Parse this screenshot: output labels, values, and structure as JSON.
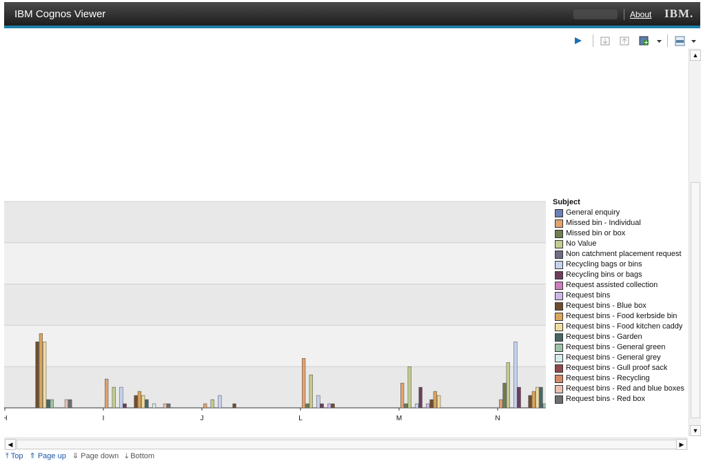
{
  "app": {
    "title": "IBM Cognos Viewer",
    "about_label": "About",
    "brand": "IBM."
  },
  "toolbar": {
    "buttons": [
      {
        "name": "run-report-button",
        "icon": "play-icon"
      },
      {
        "name": "drill-down-button",
        "icon": "drill-down-icon"
      },
      {
        "name": "drill-up-button",
        "icon": "drill-up-icon"
      },
      {
        "name": "add-to-bookmarks-button",
        "icon": "add-icon"
      },
      {
        "name": "output-format-button",
        "icon": "html-icon"
      }
    ]
  },
  "legend": {
    "title": "Subject",
    "items": [
      {
        "label": "General enquiry",
        "color": "#6b7fb8"
      },
      {
        "label": "Missed bin - Individual",
        "color": "#e0a36f"
      },
      {
        "label": "Missed bin or box",
        "color": "#6e7d52"
      },
      {
        "label": "No Value",
        "color": "#c4cc8f"
      },
      {
        "label": "Non catchment placement request",
        "color": "#6e6e86"
      },
      {
        "label": "Recycling bags or bins",
        "color": "#c6d2ee"
      },
      {
        "label": "Recycling bins or bags",
        "color": "#6e3f5c"
      },
      {
        "label": "Request assisted collection",
        "color": "#cc7fbd"
      },
      {
        "label": "Request bins",
        "color": "#cdb8e8"
      },
      {
        "label": "Request bins - Blue box",
        "color": "#6e4e2f"
      },
      {
        "label": "Request bins - Food kerbside bin",
        "color": "#d9a55e"
      },
      {
        "label": "Request bins - Food kitchen caddy",
        "color": "#f0dc9f"
      },
      {
        "label": "Request bins - Garden",
        "color": "#486666"
      },
      {
        "label": "Request bins - General green",
        "color": "#9ec2a6"
      },
      {
        "label": "Request bins - General grey",
        "color": "#d5ecec"
      },
      {
        "label": "Request bins - Gull proof sack",
        "color": "#8e4a4a"
      },
      {
        "label": "Request bins - Recycling",
        "color": "#d48a68"
      },
      {
        "label": "Request bins - Red and blue boxes",
        "color": "#e8c0b0"
      },
      {
        "label": "Request bins - Red box",
        "color": "#6e6e6e"
      }
    ]
  },
  "chart_data": {
    "type": "bar",
    "categories": [
      "H",
      "I",
      "J",
      "L",
      "M",
      "N"
    ],
    "series": [
      {
        "name": "General enquiry",
        "values": [
          0,
          0,
          0,
          0,
          0,
          0
        ]
      },
      {
        "name": "Missed bin - Individual",
        "values": [
          0,
          7,
          1,
          12,
          6,
          2
        ]
      },
      {
        "name": "Missed bin or box",
        "values": [
          0,
          0,
          0,
          1,
          1,
          6
        ]
      },
      {
        "name": "No Value",
        "values": [
          0,
          5,
          2,
          8,
          10,
          11
        ]
      },
      {
        "name": "Non catchment placement request",
        "values": [
          0,
          0,
          0,
          0,
          0,
          0
        ]
      },
      {
        "name": "Recycling bags or bins",
        "values": [
          0,
          5,
          3,
          3,
          1,
          16
        ]
      },
      {
        "name": "Recycling bins or bags",
        "values": [
          0,
          1,
          0,
          1,
          5,
          5
        ]
      },
      {
        "name": "Request assisted collection",
        "values": [
          0,
          0,
          0,
          0,
          0,
          0
        ]
      },
      {
        "name": "Request bins",
        "values": [
          0,
          0,
          0,
          1,
          1,
          0
        ]
      },
      {
        "name": "Request bins - Blue box",
        "values": [
          16,
          3,
          1,
          1,
          2,
          3
        ]
      },
      {
        "name": "Request bins - Food kerbside bin",
        "values": [
          18,
          4,
          0,
          0,
          4,
          4
        ]
      },
      {
        "name": "Request bins - Food kitchen caddy",
        "values": [
          16,
          3,
          0,
          0,
          3,
          5
        ]
      },
      {
        "name": "Request bins - Garden",
        "values": [
          2,
          2,
          0,
          0,
          0,
          5
        ]
      },
      {
        "name": "Request bins - General green",
        "values": [
          2,
          0,
          0,
          0,
          0,
          1
        ]
      },
      {
        "name": "Request bins - General grey",
        "values": [
          0,
          1,
          0,
          0,
          0,
          2
        ]
      },
      {
        "name": "Request bins - Gull proof sack",
        "values": [
          0,
          0,
          0,
          0,
          0,
          0
        ]
      },
      {
        "name": "Request bins - Recycling",
        "values": [
          0,
          0,
          0,
          0,
          0,
          1
        ]
      },
      {
        "name": "Request bins - Red and blue boxes",
        "values": [
          2,
          1,
          0,
          0,
          0,
          2
        ]
      },
      {
        "name": "Request bins - Red box",
        "values": [
          2,
          1,
          0,
          0,
          0,
          0
        ]
      }
    ],
    "ylim": [
      0,
      50
    ],
    "grid": true,
    "legend_position": "right"
  },
  "pagenav": {
    "top": "Top",
    "page_up": "Page up",
    "page_down": "Page down",
    "bottom": "Bottom"
  }
}
